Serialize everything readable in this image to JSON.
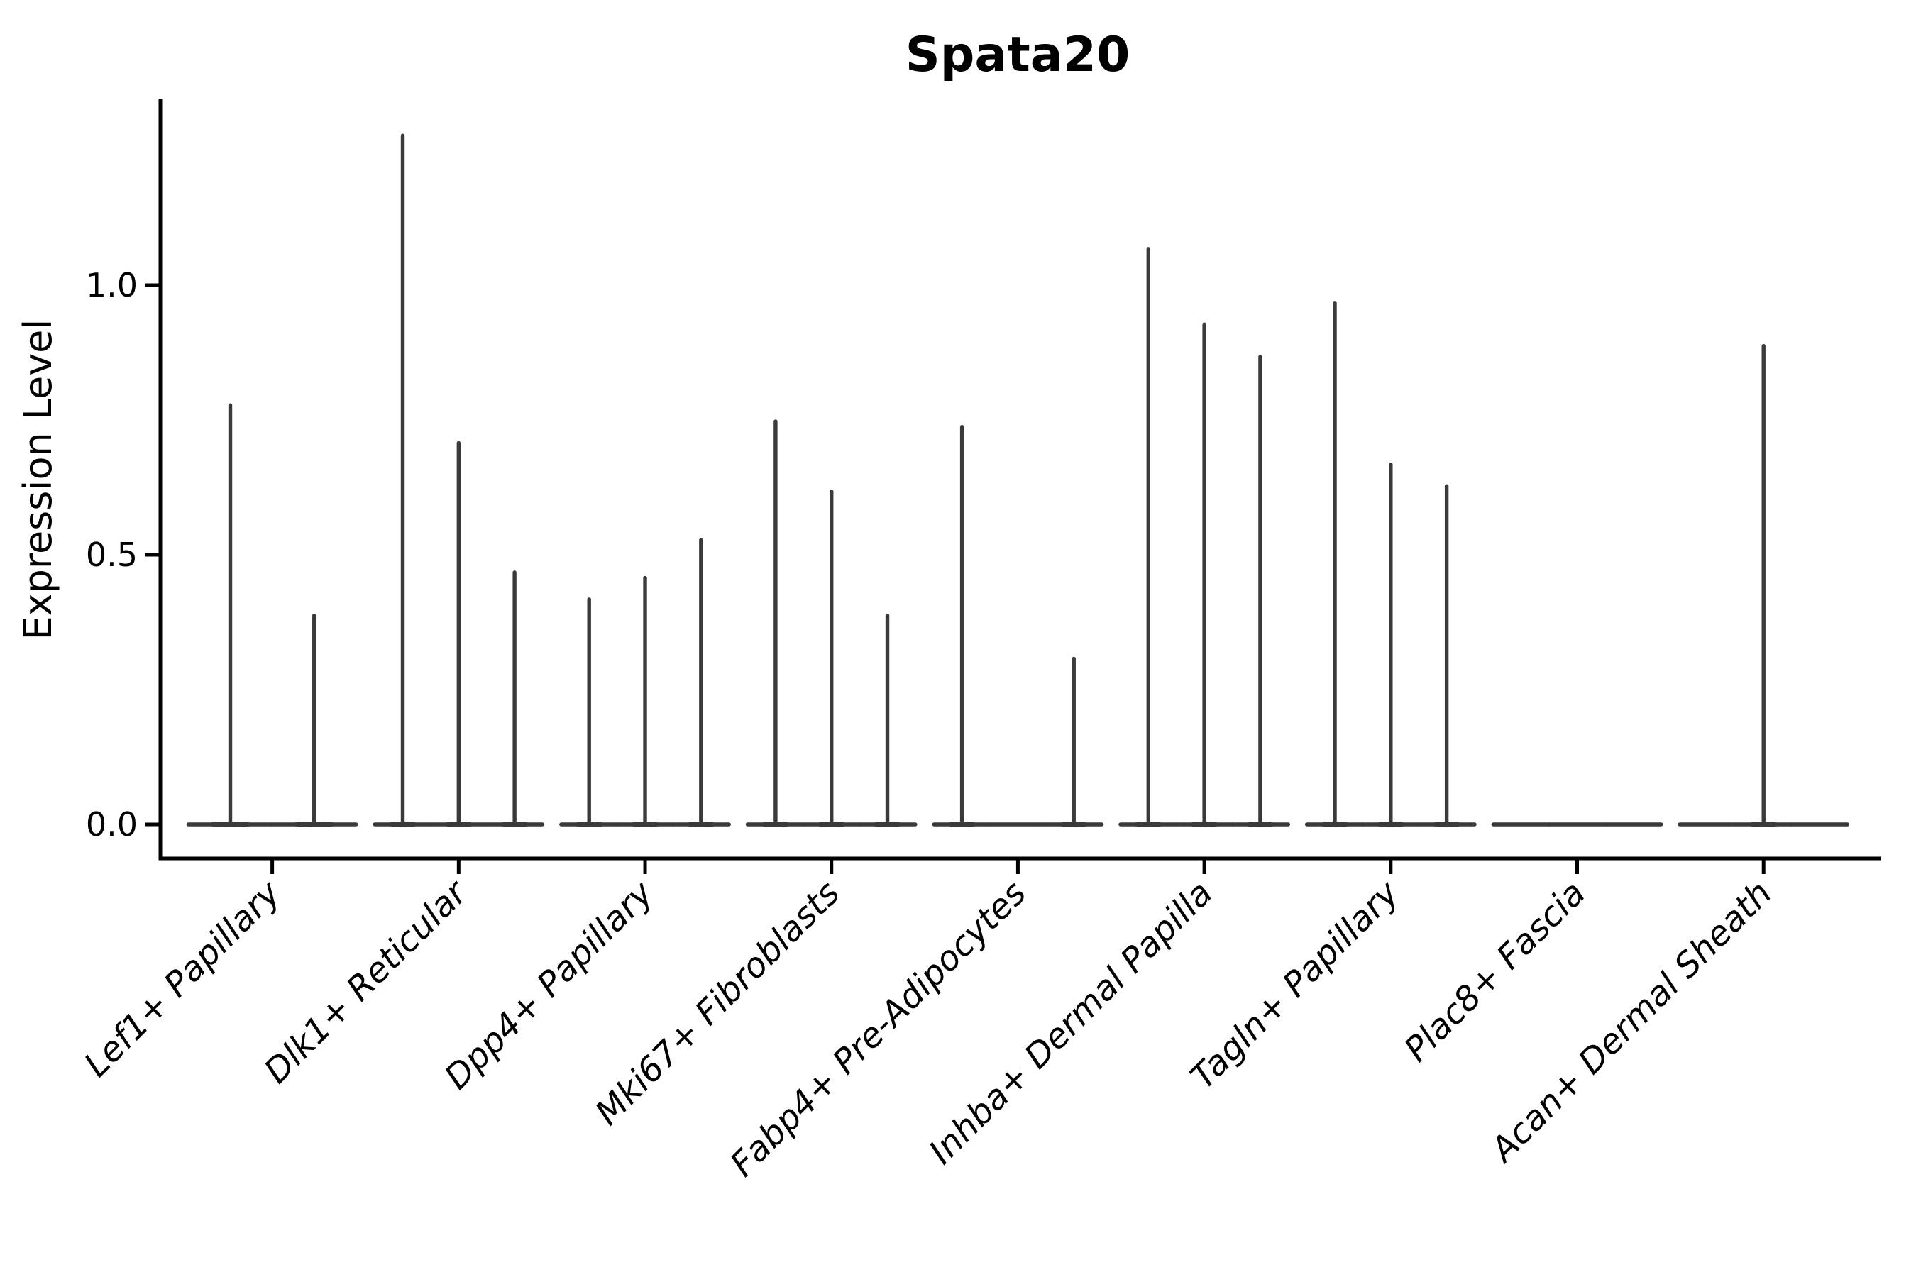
{
  "title": "Spata20",
  "y_axis": {
    "label": "Expression Level",
    "tick_labels": [
      "0.0",
      "0.5",
      "1.0"
    ]
  },
  "colors": {
    "violin_line": "#3a3a3a",
    "axis_line": "#000000",
    "background": "#ffffff"
  },
  "chart_data": {
    "type": "violin",
    "title": "Spata20",
    "ylabel": "Expression Level",
    "xlabel": "",
    "yticks": [
      0.0,
      0.5,
      1.0
    ],
    "ylim": [
      -0.06,
      1.34
    ],
    "grid": false,
    "legend_position": "none",
    "x_label_rotation": 45,
    "categories": [
      "Lef1+ Papillary",
      "Dlk1+ Reticular",
      "Dpp4+ Papillary",
      "Mki67+ Fibroblasts",
      "Fabp4+ Pre-Adipocytes",
      "Inhba+ Dermal Papilla",
      "Tagln+ Papillary",
      "Plac8+ Fascia",
      "Acan+ Dermal Sheath"
    ],
    "violins": [
      {
        "category": "Lef1+ Papillary",
        "items": [
          {
            "dx": -0.225,
            "halfwidth": 0.225,
            "max": 0.78
          },
          {
            "dx": 0.225,
            "halfwidth": 0.225,
            "max": 0.39
          }
        ]
      },
      {
        "category": "Dlk1+ Reticular",
        "items": [
          {
            "dx": -0.3,
            "halfwidth": 0.15,
            "max": 1.28
          },
          {
            "dx": 0.0,
            "halfwidth": 0.15,
            "max": 0.71
          },
          {
            "dx": 0.3,
            "halfwidth": 0.15,
            "max": 0.47
          }
        ]
      },
      {
        "category": "Dpp4+ Papillary",
        "items": [
          {
            "dx": -0.3,
            "halfwidth": 0.15,
            "max": 0.42
          },
          {
            "dx": 0.0,
            "halfwidth": 0.15,
            "max": 0.46
          },
          {
            "dx": 0.3,
            "halfwidth": 0.15,
            "max": 0.53
          }
        ]
      },
      {
        "category": "Mki67+ Fibroblasts",
        "items": [
          {
            "dx": -0.3,
            "halfwidth": 0.15,
            "max": 0.75
          },
          {
            "dx": 0.0,
            "halfwidth": 0.15,
            "max": 0.62
          },
          {
            "dx": 0.3,
            "halfwidth": 0.15,
            "max": 0.39
          }
        ]
      },
      {
        "category": "Fabp4+ Pre-Adipocytes",
        "items": [
          {
            "dx": -0.3,
            "halfwidth": 0.15,
            "max": 0.74
          },
          {
            "dx": 0.0,
            "halfwidth": 0.15,
            "max": 0.0
          },
          {
            "dx": 0.3,
            "halfwidth": 0.15,
            "max": 0.31
          }
        ]
      },
      {
        "category": "Inhba+ Dermal Papilla",
        "items": [
          {
            "dx": -0.3,
            "halfwidth": 0.15,
            "max": 1.07
          },
          {
            "dx": 0.0,
            "halfwidth": 0.15,
            "max": 0.93
          },
          {
            "dx": 0.3,
            "halfwidth": 0.15,
            "max": 0.87
          }
        ]
      },
      {
        "category": "Tagln+ Papillary",
        "items": [
          {
            "dx": -0.3,
            "halfwidth": 0.15,
            "max": 0.97
          },
          {
            "dx": 0.0,
            "halfwidth": 0.15,
            "max": 0.67
          },
          {
            "dx": 0.3,
            "halfwidth": 0.15,
            "max": 0.63
          }
        ]
      },
      {
        "category": "Plac8+ Fascia",
        "items": [
          {
            "dx": -0.3,
            "halfwidth": 0.15,
            "max": 0.0
          },
          {
            "dx": 0.0,
            "halfwidth": 0.15,
            "max": 0.0
          },
          {
            "dx": 0.3,
            "halfwidth": 0.15,
            "max": 0.0
          }
        ]
      },
      {
        "category": "Acan+ Dermal Sheath",
        "items": [
          {
            "dx": -0.3,
            "halfwidth": 0.15,
            "max": 0.0
          },
          {
            "dx": 0.0,
            "halfwidth": 0.15,
            "max": 0.89
          },
          {
            "dx": 0.3,
            "halfwidth": 0.15,
            "max": 0.0
          }
        ]
      }
    ]
  }
}
